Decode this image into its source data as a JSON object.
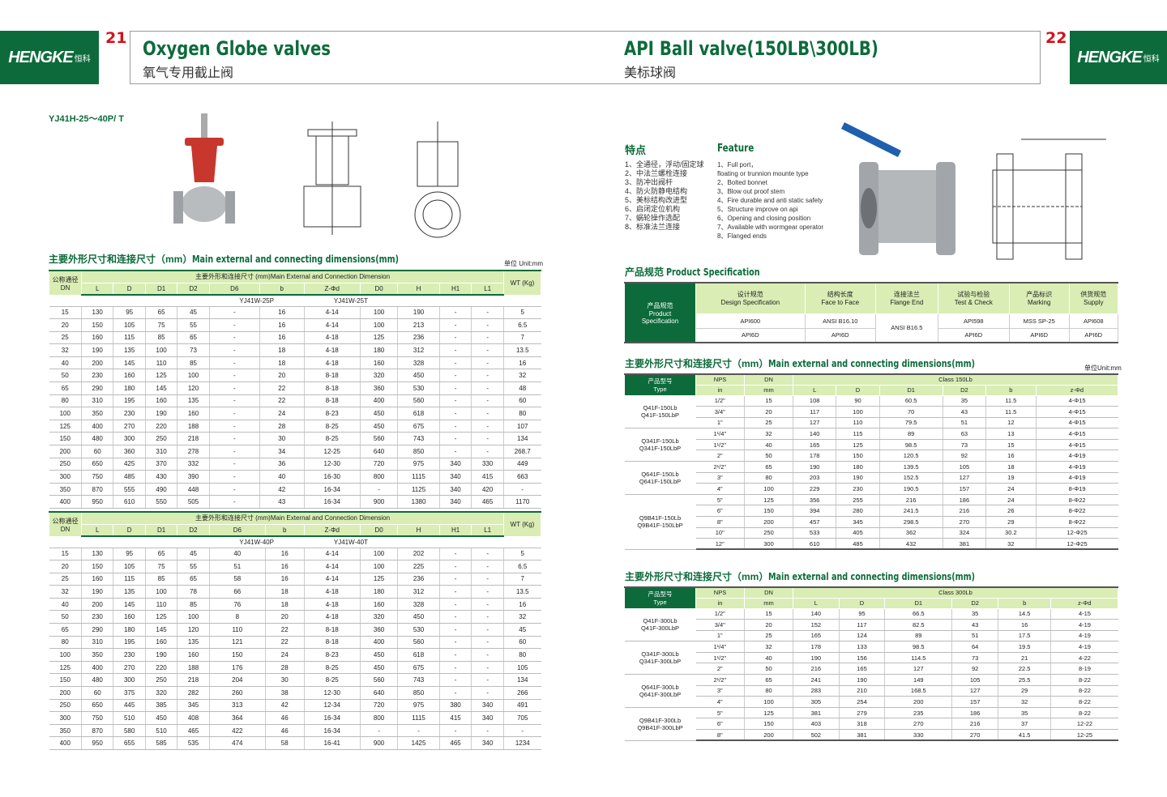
{
  "brand": {
    "name": "HENGKE",
    "cn": "恒科"
  },
  "left": {
    "page": "21",
    "title": "Oxygen Globe valves",
    "subtitle": "氧气专用截止阀",
    "model": "YJ41H-25～40P/ T",
    "section": {
      "cn": "主要外形尺寸和连接尺寸（mm）",
      "en": "Main external and connecting dimensions(mm)"
    },
    "unit": "单位 Unit:mm",
    "dn_header": "公称通径 DN",
    "main_header": "主要外形和连接尺寸 (mm)Main External and Connection Dimension",
    "wt_header": "WT (Kg)",
    "columns": [
      "L",
      "D",
      "D1",
      "D2",
      "D6",
      "b",
      "Z-Φd",
      "D0",
      "H",
      "H1",
      "L1"
    ],
    "tables": [
      {
        "models": [
          "YJ41W-25P",
          "YJ41W-25T"
        ],
        "rows": [
          [
            "15",
            "130",
            "95",
            "65",
            "45",
            "-",
            "16",
            "4-14",
            "100",
            "190",
            "-",
            "-",
            "5"
          ],
          [
            "20",
            "150",
            "105",
            "75",
            "55",
            "-",
            "16",
            "4-14",
            "100",
            "213",
            "-",
            "-",
            "6.5"
          ],
          [
            "25",
            "160",
            "115",
            "85",
            "65",
            "-",
            "16",
            "4-18",
            "125",
            "236",
            "-",
            "-",
            "7"
          ],
          [
            "32",
            "190",
            "135",
            "100",
            "73",
            "-",
            "18",
            "4-18",
            "180",
            "312",
            "-",
            "-",
            "13.5"
          ],
          [
            "40",
            "200",
            "145",
            "110",
            "85",
            "-",
            "18",
            "4-18",
            "160",
            "328",
            "-",
            "-",
            "16"
          ],
          [
            "50",
            "230",
            "160",
            "125",
            "100",
            "-",
            "20",
            "8-18",
            "320",
            "450",
            "-",
            "-",
            "32"
          ],
          [
            "65",
            "290",
            "180",
            "145",
            "120",
            "-",
            "22",
            "8-18",
            "360",
            "530",
            "-",
            "-",
            "48"
          ],
          [
            "80",
            "310",
            "195",
            "160",
            "135",
            "-",
            "22",
            "8-18",
            "400",
            "560",
            "-",
            "-",
            "60"
          ],
          [
            "100",
            "350",
            "230",
            "190",
            "160",
            "-",
            "24",
            "8-23",
            "450",
            "618",
            "-",
            "-",
            "80"
          ],
          [
            "125",
            "400",
            "270",
            "220",
            "188",
            "-",
            "28",
            "8-25",
            "450",
            "675",
            "-",
            "-",
            "107"
          ],
          [
            "150",
            "480",
            "300",
            "250",
            "218",
            "-",
            "30",
            "8-25",
            "560",
            "743",
            "-",
            "-",
            "134"
          ],
          [
            "200",
            "60",
            "360",
            "310",
            "278",
            "-",
            "34",
            "12-25",
            "640",
            "850",
            "-",
            "-",
            "268.7"
          ],
          [
            "250",
            "650",
            "425",
            "370",
            "332",
            "-",
            "36",
            "12-30",
            "720",
            "975",
            "340",
            "330",
            "449"
          ],
          [
            "300",
            "750",
            "485",
            "430",
            "390",
            "-",
            "40",
            "16-30",
            "800",
            "1115",
            "340",
            "415",
            "663"
          ],
          [
            "350",
            "870",
            "555",
            "490",
            "448",
            "-",
            "42",
            "16-34",
            "-",
            "1125",
            "340",
            "420",
            "-"
          ],
          [
            "400",
            "950",
            "610",
            "550",
            "505",
            "-",
            "43",
            "16-34",
            "900",
            "1380",
            "340",
            "465",
            "1170"
          ]
        ]
      },
      {
        "models": [
          "YJ41W-40P",
          "YJ41W-40T"
        ],
        "rows": [
          [
            "15",
            "130",
            "95",
            "65",
            "45",
            "40",
            "16",
            "4-14",
            "100",
            "202",
            "-",
            "-",
            "5"
          ],
          [
            "20",
            "150",
            "105",
            "75",
            "55",
            "51",
            "16",
            "4-14",
            "100",
            "225",
            "-",
            "-",
            "6.5"
          ],
          [
            "25",
            "160",
            "115",
            "85",
            "65",
            "58",
            "16",
            "4-14",
            "125",
            "236",
            "-",
            "-",
            "7"
          ],
          [
            "32",
            "190",
            "135",
            "100",
            "78",
            "66",
            "18",
            "4-18",
            "180",
            "312",
            "-",
            "-",
            "13.5"
          ],
          [
            "40",
            "200",
            "145",
            "110",
            "85",
            "76",
            "18",
            "4-18",
            "160",
            "328",
            "-",
            "-",
            "16"
          ],
          [
            "50",
            "230",
            "160",
            "125",
            "100",
            "8",
            "20",
            "4-18",
            "320",
            "450",
            "-",
            "-",
            "32"
          ],
          [
            "65",
            "290",
            "180",
            "145",
            "120",
            "110",
            "22",
            "8-18",
            "360",
            "530",
            "-",
            "-",
            "45"
          ],
          [
            "80",
            "310",
            "195",
            "160",
            "135",
            "121",
            "22",
            "8-18",
            "400",
            "560",
            "-",
            "-",
            "60"
          ],
          [
            "100",
            "350",
            "230",
            "190",
            "160",
            "150",
            "24",
            "8-23",
            "450",
            "618",
            "-",
            "-",
            "80"
          ],
          [
            "125",
            "400",
            "270",
            "220",
            "188",
            "176",
            "28",
            "8-25",
            "450",
            "675",
            "-",
            "-",
            "105"
          ],
          [
            "150",
            "480",
            "300",
            "250",
            "218",
            "204",
            "30",
            "8-25",
            "560",
            "743",
            "-",
            "-",
            "134"
          ],
          [
            "200",
            "60",
            "375",
            "320",
            "282",
            "260",
            "38",
            "12-30",
            "640",
            "850",
            "-",
            "-",
            "266"
          ],
          [
            "250",
            "650",
            "445",
            "385",
            "345",
            "313",
            "42",
            "12-34",
            "720",
            "975",
            "380",
            "340",
            "491"
          ],
          [
            "300",
            "750",
            "510",
            "450",
            "408",
            "364",
            "46",
            "16-34",
            "800",
            "1115",
            "415",
            "340",
            "705"
          ],
          [
            "350",
            "870",
            "580",
            "510",
            "465",
            "422",
            "46",
            "16-34",
            "-",
            "-",
            "-",
            "-",
            "-"
          ],
          [
            "400",
            "950",
            "655",
            "585",
            "535",
            "474",
            "58",
            "16-41",
            "900",
            "1425",
            "465",
            "340",
            "1234"
          ]
        ]
      }
    ]
  },
  "right": {
    "page": "22",
    "title": "API Ball valve(150LB\\300LB)",
    "subtitle": "美标球阀",
    "features_cn_title": "特点",
    "features_en_title": "Feature",
    "features_cn": [
      "1、全通径，浮动/固定球",
      "2、中法兰螺栓连接",
      "3、防冲出阀杆",
      "4、防火防静电结构",
      "5、美标结构改进型",
      "6、启闭定位机构",
      "7、蜗轮操作选配",
      "8、标准法兰连接"
    ],
    "features_en": [
      "1、Full port，",
      "floating or trunnion mounte type",
      "2、Bolted bonnet",
      "3、Blow out proof stem",
      "4、Fire durable and anti static safety",
      "5、Structure improve on api",
      "6、Opening and closing position",
      "7、Available with wormgear operator",
      "8、Flanged ends"
    ],
    "spec_title": {
      "cn": "产品规范",
      "en": "Product Specification"
    },
    "spec": {
      "row_header": [
        "产品规范",
        "Product",
        "Specification"
      ],
      "columns": [
        [
          "设计规范",
          "Design Specification"
        ],
        [
          "结构长度",
          "Face to Face"
        ],
        [
          "连接法兰",
          "Flange End"
        ],
        [
          "试验与检验",
          "Test & Check"
        ],
        [
          "产品标识",
          "Marking"
        ],
        [
          "供货规范",
          "Supply"
        ]
      ],
      "row1": [
        "API600",
        "ANSI B16.10",
        "ANSI B16.5",
        "API598",
        "MSS SP-25",
        "API608"
      ],
      "row2": [
        "API6D",
        "API6D",
        "API6D",
        "API6D",
        "API6D"
      ]
    },
    "section": {
      "cn": "主要外形尺寸和连接尺寸（mm）",
      "en": "Main external and connecting dimensions(mm)"
    },
    "unit": "单位Unit:mm",
    "type_header": [
      "产品型号",
      "Type"
    ],
    "nps_header": [
      "NPS",
      "in"
    ],
    "dn_header": [
      "DN",
      "mm"
    ],
    "columns": [
      "L",
      "D",
      "D1",
      "D2",
      "b",
      "z-Φd"
    ],
    "tables": [
      {
        "class": "Class 150Lb",
        "groups": [
          {
            "types": [
              "Q41F-150Lb",
              "Q41F-150LbP"
            ],
            "span": 3
          },
          {
            "types": [
              "Q341F-150Lb",
              "Q341F-150LbP"
            ],
            "span": 3
          },
          {
            "types": [
              "Q641F-150Lb",
              "Q641F-150LbP"
            ],
            "span": 3
          },
          {
            "types": [
              "Q9B41F-150Lb",
              "Q9B41F-150LbP"
            ],
            "span": 5
          }
        ],
        "rows": [
          [
            "1/2\"",
            "15",
            "108",
            "90",
            "60.5",
            "35",
            "11.5",
            "4-Φ15"
          ],
          [
            "3/4\"",
            "20",
            "117",
            "100",
            "70",
            "43",
            "11.5",
            "4-Φ15"
          ],
          [
            "1\"",
            "25",
            "127",
            "110",
            "79.5",
            "51",
            "12",
            "4-Φ15"
          ],
          [
            "1¹/4\"",
            "32",
            "140",
            "115",
            "89",
            "63",
            "13",
            "4-Φ15"
          ],
          [
            "1¹/2\"",
            "40",
            "165",
            "125",
            "98.5",
            "73",
            "15",
            "4-Φ15"
          ],
          [
            "2\"",
            "50",
            "178",
            "150",
            "120.5",
            "92",
            "16",
            "4-Φ19"
          ],
          [
            "2¹/2\"",
            "65",
            "190",
            "180",
            "139.5",
            "105",
            "18",
            "4-Φ19"
          ],
          [
            "3\"",
            "80",
            "203",
            "190",
            "152.5",
            "127",
            "19",
            "4-Φ19"
          ],
          [
            "4\"",
            "100",
            "229",
            "230",
            "190.5",
            "157",
            "24",
            "8-Φ19"
          ],
          [
            "5\"",
            "125",
            "356",
            "255",
            "216",
            "186",
            "24",
            "8-Φ22"
          ],
          [
            "6\"",
            "150",
            "394",
            "280",
            "241.5",
            "216",
            "26",
            "8-Φ22"
          ],
          [
            "8\"",
            "200",
            "457",
            "345",
            "298.5",
            "270",
            "29",
            "8-Φ22"
          ],
          [
            "10\"",
            "250",
            "533",
            "405",
            "362",
            "324",
            "30.2",
            "12-Φ25"
          ],
          [
            "12\"",
            "300",
            "610",
            "485",
            "432",
            "381",
            "32",
            "12-Φ25"
          ]
        ]
      },
      {
        "class": "Class 300Lb",
        "groups": [
          {
            "types": [
              "Q41F-300Lb",
              "Q41F-300LbP"
            ],
            "span": 3
          },
          {
            "types": [
              "Q341F-300Lb",
              "Q341F-300LbP"
            ],
            "span": 3
          },
          {
            "types": [
              "Q641F-300Lb",
              "Q641F-300LbP"
            ],
            "span": 3
          },
          {
            "types": [
              "Q9B41F-300Lb",
              "Q9B41F-300LbP"
            ],
            "span": 3
          }
        ],
        "rows": [
          [
            "1/2\"",
            "15",
            "140",
            "95",
            "66.5",
            "35",
            "14.5",
            "4-15"
          ],
          [
            "3/4\"",
            "20",
            "152",
            "117",
            "82.5",
            "43",
            "16",
            "4-19"
          ],
          [
            "1\"",
            "25",
            "165",
            "124",
            "89",
            "51",
            "17.5",
            "4-19"
          ],
          [
            "1¹/4\"",
            "32",
            "178",
            "133",
            "98.5",
            "64",
            "19.5",
            "4-19"
          ],
          [
            "1¹/2\"",
            "40",
            "190",
            "156",
            "114.5",
            "73",
            "21",
            "4-22"
          ],
          [
            "2\"",
            "50",
            "216",
            "165",
            "127",
            "92",
            "22.5",
            "8-19"
          ],
          [
            "2¹/2\"",
            "65",
            "241",
            "190",
            "149",
            "105",
            "25.5",
            "8-22"
          ],
          [
            "3\"",
            "80",
            "283",
            "210",
            "168.5",
            "127",
            "29",
            "8-22"
          ],
          [
            "4\"",
            "100",
            "305",
            "254",
            "200",
            "157",
            "32",
            "8-22"
          ],
          [
            "5\"",
            "125",
            "381",
            "279",
            "235",
            "186",
            "35",
            "8-22"
          ],
          [
            "6\"",
            "150",
            "403",
            "318",
            "270",
            "216",
            "37",
            "12-22"
          ],
          [
            "8\"",
            "200",
            "502",
            "381",
            "330",
            "270",
            "41.5",
            "12-25"
          ]
        ]
      }
    ]
  },
  "colors": {
    "brand_green": "#0d6b3b",
    "header_green": "#d9edb5",
    "page_number_red": "#d3121b"
  }
}
